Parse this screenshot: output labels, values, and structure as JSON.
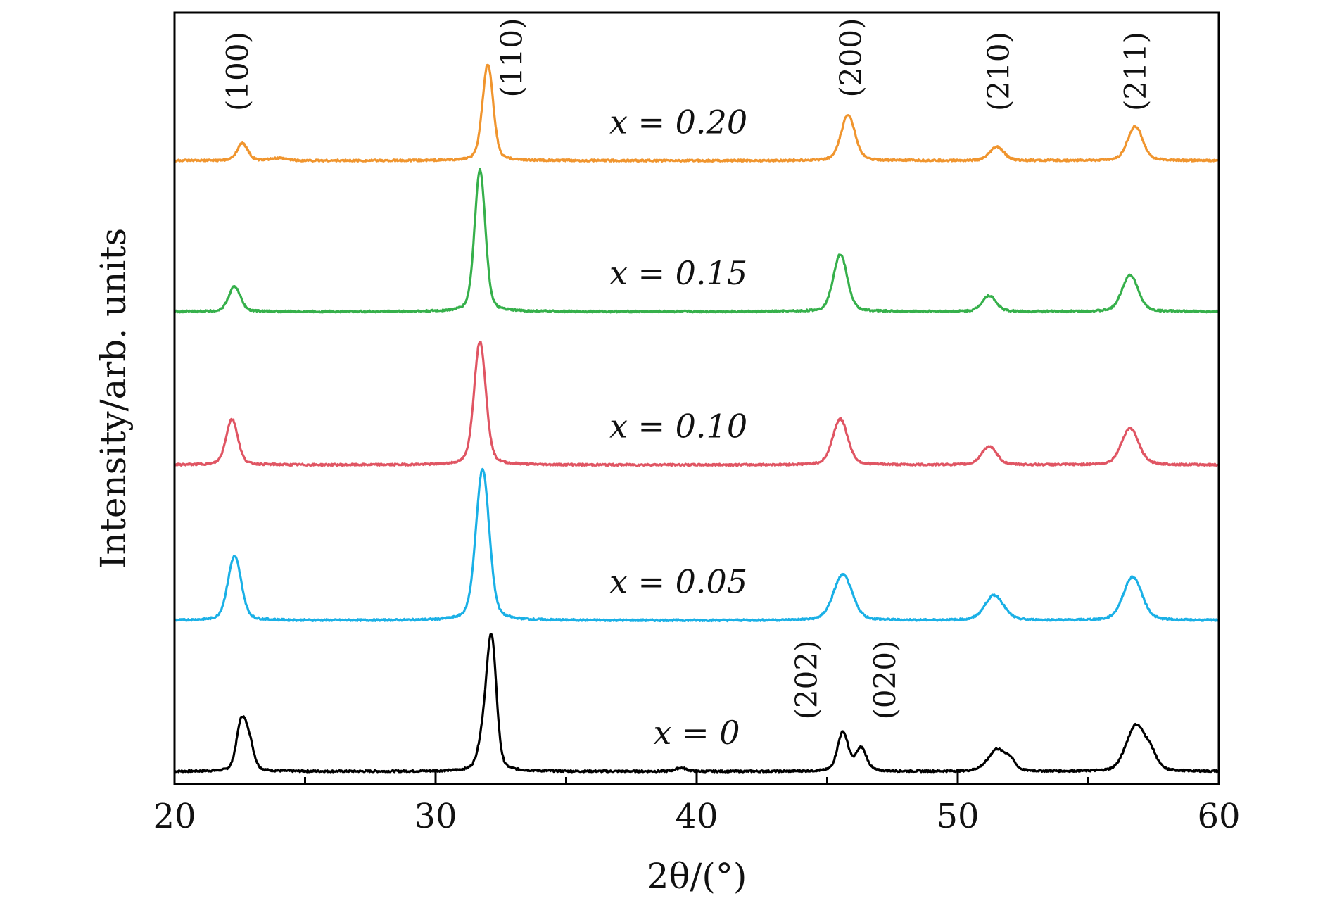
{
  "chart_data": {
    "type": "line",
    "title": "",
    "xlabel": "2θ/(°)",
    "ylabel": "Intensity/arb. units",
    "xlim": [
      20,
      60
    ],
    "x_ticks": [
      20,
      30,
      40,
      50,
      60
    ],
    "x_minor_ticks": [
      25,
      35,
      45,
      55
    ],
    "grid": false,
    "legend": "none",
    "y_scale": "stacked offset, no numeric ticks",
    "series": [
      {
        "label": "x = 0",
        "color": "#000000",
        "baseline_level": 0.0,
        "peaks": [
          {
            "x": 22.55,
            "height": 0.2,
            "width": 0.18
          },
          {
            "x": 22.85,
            "height": 0.12,
            "width": 0.18
          },
          {
            "x": 31.85,
            "height": 0.14,
            "width": 0.2
          },
          {
            "x": 32.15,
            "height": 0.55,
            "width": 0.18
          },
          {
            "x": 39.4,
            "height": 0.015,
            "width": 0.2
          },
          {
            "x": 45.6,
            "height": 0.17,
            "width": 0.2
          },
          {
            "x": 46.3,
            "height": 0.1,
            "width": 0.2
          },
          {
            "x": 51.2,
            "height": 0.03,
            "width": 0.3
          },
          {
            "x": 51.5,
            "height": 0.07,
            "width": 0.22
          },
          {
            "x": 51.95,
            "height": 0.06,
            "width": 0.22
          },
          {
            "x": 56.6,
            "height": 0.1,
            "width": 0.3
          },
          {
            "x": 56.9,
            "height": 0.12,
            "width": 0.25
          },
          {
            "x": 57.35,
            "height": 0.09,
            "width": 0.25
          }
        ]
      },
      {
        "label": "x = 0.05",
        "color": "#1ab0e6",
        "baseline_level": 0.66,
        "peaks": [
          {
            "x": 22.3,
            "height": 0.28,
            "width": 0.25
          },
          {
            "x": 31.8,
            "height": 0.66,
            "width": 0.25
          },
          {
            "x": 45.6,
            "height": 0.2,
            "width": 0.35
          },
          {
            "x": 51.4,
            "height": 0.11,
            "width": 0.35
          },
          {
            "x": 56.7,
            "height": 0.19,
            "width": 0.35
          }
        ]
      },
      {
        "label": "x = 0.10",
        "color": "#e05563",
        "baseline_level": 1.34,
        "peaks": [
          {
            "x": 22.2,
            "height": 0.2,
            "width": 0.22
          },
          {
            "x": 31.7,
            "height": 0.54,
            "width": 0.22
          },
          {
            "x": 45.5,
            "height": 0.2,
            "width": 0.28
          },
          {
            "x": 51.2,
            "height": 0.08,
            "width": 0.28
          },
          {
            "x": 56.6,
            "height": 0.16,
            "width": 0.32
          }
        ]
      },
      {
        "label": "x = 0.15",
        "color": "#36b04b",
        "baseline_level": 2.01,
        "peaks": [
          {
            "x": 22.3,
            "height": 0.11,
            "width": 0.22
          },
          {
            "x": 31.7,
            "height": 0.62,
            "width": 0.2
          },
          {
            "x": 45.5,
            "height": 0.25,
            "width": 0.26
          },
          {
            "x": 51.2,
            "height": 0.07,
            "width": 0.26
          },
          {
            "x": 56.6,
            "height": 0.16,
            "width": 0.3
          }
        ]
      },
      {
        "label": "x = 0.20",
        "color": "#f0952e",
        "baseline_level": 2.67,
        "peaks": [
          {
            "x": 22.6,
            "height": 0.075,
            "width": 0.2
          },
          {
            "x": 24.0,
            "height": 0.01,
            "width": 0.3
          },
          {
            "x": 32.0,
            "height": 0.42,
            "width": 0.2
          },
          {
            "x": 45.8,
            "height": 0.2,
            "width": 0.26
          },
          {
            "x": 51.5,
            "height": 0.06,
            "width": 0.26
          },
          {
            "x": 56.8,
            "height": 0.15,
            "width": 0.28
          }
        ]
      }
    ],
    "annotations": [
      {
        "text": "(100)",
        "x": 22.8,
        "level": 3.06,
        "rotated": true
      },
      {
        "text": "(110)",
        "x": 33.3,
        "level": 3.12,
        "rotated": true
      },
      {
        "text": "(200)",
        "x": 46.3,
        "level": 3.12,
        "rotated": true
      },
      {
        "text": "(210)",
        "x": 51.95,
        "level": 3.06,
        "rotated": true
      },
      {
        "text": "(211)",
        "x": 57.2,
        "level": 3.06,
        "rotated": true
      },
      {
        "text": "(202)",
        "x": 44.6,
        "level": 0.4,
        "rotated": true
      },
      {
        "text": "(020)",
        "x": 47.6,
        "level": 0.4,
        "rotated": true
      }
    ]
  }
}
